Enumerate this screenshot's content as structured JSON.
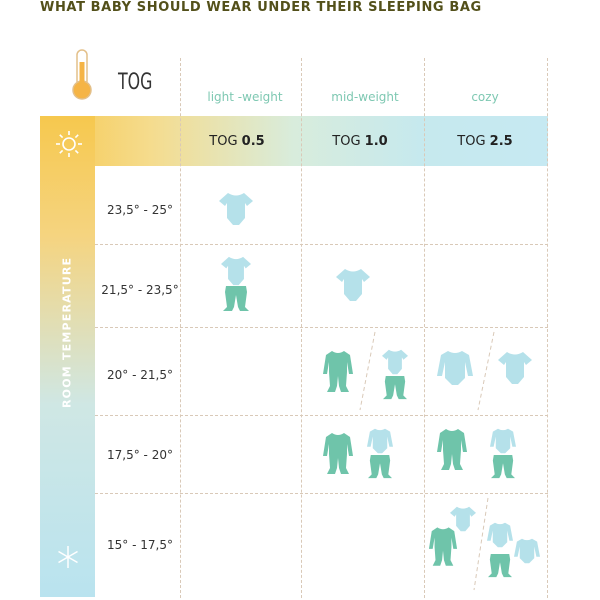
{
  "title": "WHAT BABY SHOULD WEAR UNDER THEIR SLEEPING BAG",
  "tog_header": "TOG",
  "columns": [
    {
      "name": "light -weight",
      "tog_prefix": "TOG ",
      "tog_value": "0.5"
    },
    {
      "name": "mid-weight",
      "tog_prefix": "TOG ",
      "tog_value": "1.0"
    },
    {
      "name": "cozy",
      "tog_prefix": "TOG ",
      "tog_value": "2.5"
    }
  ],
  "axis_label": "ROOM TEMPERATURE",
  "rows": [
    {
      "range": "23,5° - 25°"
    },
    {
      "range": "21,5° - 23,5°"
    },
    {
      "range": "20° - 21,5°"
    },
    {
      "range": "17,5° - 20°"
    },
    {
      "range": "15° - 17,5°"
    }
  ],
  "icons": [
    "thermometer-icon",
    "sun-icon",
    "snowflake-icon",
    "bodysuit-icon",
    "pants-icon",
    "footed-sleeper-icon",
    "long-sleeve-bodysuit-icon"
  ],
  "colors": {
    "title": "#53501a",
    "header_text": "#7ec8b2",
    "light_clothing": "#b5e1ea",
    "dark_clothing": "#6fc4aa",
    "warm": "#f6c84e",
    "cool": "#c6e9f2"
  }
}
